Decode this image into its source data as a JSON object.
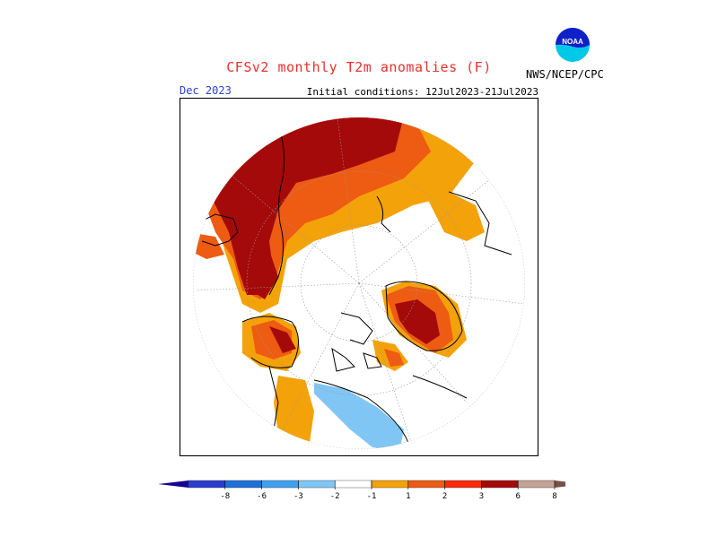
{
  "header": {
    "title": "CFSv2 monthly T2m anomalies (F)",
    "month": "Dec 2023",
    "initial_conditions": "Initial conditions: 12Jul2023-21Jul2023",
    "agency": "NWS/NCEP/CPC",
    "logo_text": "NOAA"
  },
  "map": {
    "projection": "north polar stereographic",
    "background": "#ffffff"
  },
  "colorbar": {
    "tick_labels": [
      "-8",
      "-6",
      "-3",
      "-2",
      "-1",
      "1",
      "2",
      "3",
      "6",
      "8"
    ],
    "colors": [
      "#160494",
      "#2a3bd0",
      "#1e6fd8",
      "#3ea1f0",
      "#80c6f5",
      "#ffffff",
      "#f4a20a",
      "#ee5b12",
      "#fa2a0a",
      "#a50a0a",
      "#c4a397",
      "#7a5046"
    ]
  }
}
